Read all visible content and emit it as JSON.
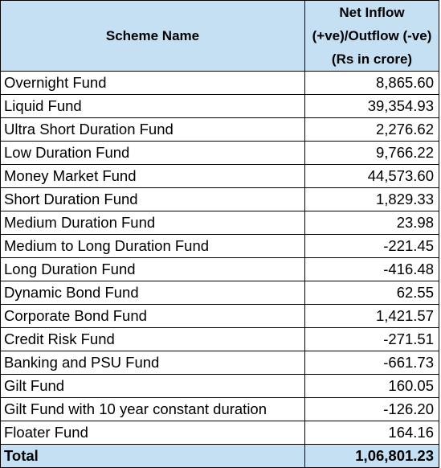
{
  "table": {
    "headers": {
      "scheme_name": "Scheme Name",
      "net_flow": "Net Inflow (+ve)/Outflow (-ve) (Rs in crore)"
    },
    "rows": [
      {
        "name": "Overnight Fund",
        "value": "8,865.60"
      },
      {
        "name": "Liquid Fund",
        "value": "39,354.93"
      },
      {
        "name": "Ultra Short Duration Fund",
        "value": "2,276.62"
      },
      {
        "name": "Low Duration Fund",
        "value": "9,766.22"
      },
      {
        "name": "Money Market Fund",
        "value": "44,573.60"
      },
      {
        "name": "Short Duration Fund",
        "value": "1,829.33"
      },
      {
        "name": "Medium Duration Fund",
        "value": "23.98"
      },
      {
        "name": "Medium to Long Duration Fund",
        "value": "-221.45"
      },
      {
        "name": "Long Duration Fund",
        "value": "-416.48"
      },
      {
        "name": "Dynamic Bond Fund",
        "value": "62.55"
      },
      {
        "name": "Corporate Bond Fund",
        "value": "1,421.57"
      },
      {
        "name": "Credit Risk Fund",
        "value": "-271.51"
      },
      {
        "name": "Banking and PSU Fund",
        "value": "-661.73"
      },
      {
        "name": "Gilt Fund",
        "value": "160.05"
      },
      {
        "name": "Gilt Fund with 10 year constant duration",
        "value": "-126.20"
      },
      {
        "name": "Floater Fund",
        "value": "164.16"
      }
    ],
    "total": {
      "name": "Total",
      "value": "1,06,801.23"
    },
    "colors": {
      "header_bg": "#c5e0f2",
      "border": "#000000"
    }
  }
}
